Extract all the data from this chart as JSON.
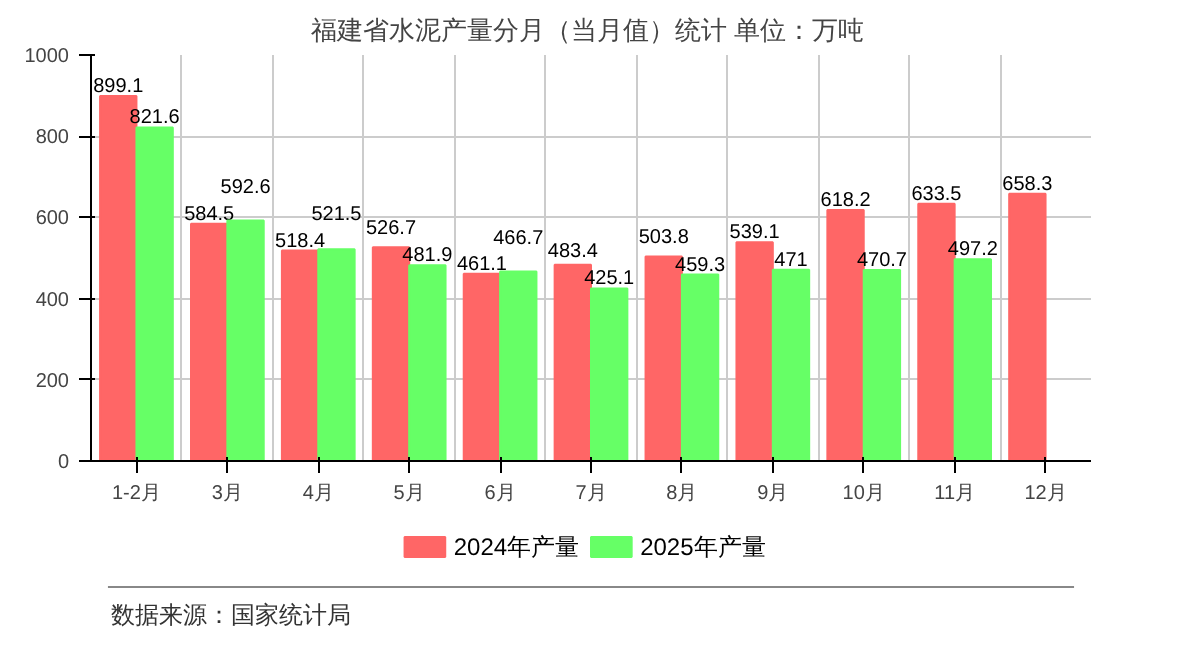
{
  "chart_data": {
    "type": "bar",
    "title": "福建省水泥产量分月（当月值）统计  单位：万吨",
    "categories": [
      "1-2月",
      "3月",
      "4月",
      "5月",
      "6月",
      "7月",
      "8月",
      "9月",
      "10月",
      "11月",
      "12月"
    ],
    "series": [
      {
        "name": "2024年产量",
        "color": "#ff6666",
        "values": [
          899.1,
          584.5,
          518.4,
          526.7,
          461.1,
          483.4,
          503.8,
          539.1,
          618.2,
          633.5,
          658.3
        ]
      },
      {
        "name": "2025年产量",
        "color": "#66ff66",
        "values": [
          821.6,
          592.6,
          521.5,
          481.9,
          466.7,
          425.1,
          459.3,
          471,
          470.7,
          497.2,
          null
        ]
      }
    ],
    "ylim": [
      0,
      1000
    ],
    "yticks": [
      0,
      200,
      400,
      600,
      800,
      1000
    ],
    "grid": true,
    "legend": "bottom",
    "data_labels": true,
    "annotations": [
      "数据来源：国家统计局"
    ]
  }
}
